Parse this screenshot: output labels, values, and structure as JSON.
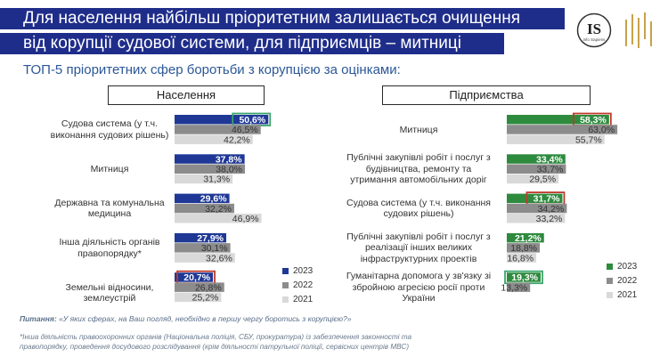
{
  "header": {
    "title_line1": "Для населення найбільш пріоритетним залишається очищення",
    "title_line2": "від корупції судової системи, для підприємців – митниці",
    "subtitle": "ТОП-5 пріоритетних сфер боротьби з корупцією за оцінками:",
    "logo_text": "IS",
    "logo_subtext": "info Sapiens"
  },
  "colors": {
    "title_bg": "#1f2d8a",
    "pop_2023": "#1f3896",
    "pop_2022": "#8c8c8c",
    "pop_2021": "#d9d9d9",
    "ent_2023": "#2e8b3e",
    "ent_2022": "#8c8c8c",
    "ent_2021": "#d9d9d9",
    "highlight_red": "#c0392b",
    "highlight_green": "#3aa56b",
    "logo_gold": "#c8a24a"
  },
  "chart_data": [
    {
      "type": "bar",
      "orientation": "horizontal",
      "title": "Населення",
      "categories": [
        "Судова система (у т.ч. виконання судових рішень)",
        "Митниця",
        "Державна та комунальна медицина",
        "Інша діяльність органів правопорядку*",
        "Земельні відносини, землеустрій"
      ],
      "category_lines": [
        [
          "Судова система (у т.ч.",
          "виконання судових рішень)"
        ],
        [
          "Митниця"
        ],
        [
          "Державна та комунальна",
          "медицина"
        ],
        [
          "Інша діяльність органів",
          "правопорядку*"
        ],
        [
          "Земельні відносини, землеустрій"
        ]
      ],
      "series": [
        {
          "name": "2023",
          "values": [
            50.6,
            37.8,
            29.6,
            27.9,
            20.7
          ],
          "labels": [
            "50,6%",
            "37,8%",
            "29,6%",
            "27,9%",
            "20,7%"
          ]
        },
        {
          "name": "2022",
          "values": [
            46.5,
            38.0,
            32.2,
            30.1,
            26.8
          ],
          "labels": [
            "46,5%",
            "38,0%",
            "32,2%",
            "30,1%",
            "26,8%"
          ]
        },
        {
          "name": "2021",
          "values": [
            42.2,
            31.3,
            46.9,
            32.6,
            25.2
          ],
          "labels": [
            "42,2%",
            "31,3%",
            "46,9%",
            "32,6%",
            "25,2%"
          ]
        }
      ],
      "highlights": [
        {
          "category_index": 0,
          "color": "green"
        },
        {
          "category_index": 4,
          "color": "red"
        }
      ],
      "legend": [
        "2023",
        "2022",
        "2021"
      ]
    },
    {
      "type": "bar",
      "orientation": "horizontal",
      "title": "Підприємства",
      "categories": [
        "Митниця",
        "Публічні закупівлі робіт і послуг з будівництва, ремонту та утримання автомобільних доріг",
        "Судова система (у т.ч. виконання судових рішень)",
        "Публічні закупівлі робіт і послуг з реалізації інших великих інфраструктурних проектів",
        "Гуманітарна допомога у зв'язку зі збройною агресією росії проти України"
      ],
      "category_lines": [
        [
          "Митниця"
        ],
        [
          "Публічні закупівлі робіт і послуг з",
          "будівництва, ремонту та",
          "утримання автомобільних доріг"
        ],
        [
          "Судова система (у т.ч. виконання",
          "судових рішень)"
        ],
        [
          "Публічні закупівлі робіт і послуг з",
          "реалізації інших великих",
          "інфраструктурних проектів"
        ],
        [
          "Гуманітарна допомога у зв'язку зі",
          "збройною агресією росії проти",
          "України"
        ]
      ],
      "series": [
        {
          "name": "2023",
          "values": [
            58.3,
            33.4,
            31.7,
            21.2,
            19.3
          ],
          "labels": [
            "58,3%",
            "33,4%",
            "31,7%",
            "21,2%",
            "19,3%"
          ]
        },
        {
          "name": "2022",
          "values": [
            63.0,
            33.7,
            34.2,
            18.8,
            13.3
          ],
          "labels": [
            "63,0%",
            "33,7%",
            "34,2%",
            "18,8%",
            "13,3%"
          ]
        },
        {
          "name": "2021",
          "values": [
            55.7,
            29.5,
            33.2,
            16.8,
            null
          ],
          "labels": [
            "55,7%",
            "29,5%",
            "33,2%",
            "16,8%",
            ""
          ]
        }
      ],
      "highlights": [
        {
          "category_index": 0,
          "color": "red"
        },
        {
          "category_index": 2,
          "color": "red"
        },
        {
          "category_index": 4,
          "color": "green"
        }
      ],
      "legend": [
        "2023",
        "2022",
        "2021"
      ]
    }
  ],
  "footer": {
    "question_label": "Питання:",
    "question_text": " «У яких сферах, на Ваш погляд, необхідно в першу чергу боротись з корупцією?»",
    "footnote": "*Інша діяльність правоохоронних органів (Національна поліція, СБУ, прокуратура) із забезпечення законності та правопорядку, проведення досудового розслідування (крім діяльності патрульної поліції, сервісних центрів МВС)"
  }
}
